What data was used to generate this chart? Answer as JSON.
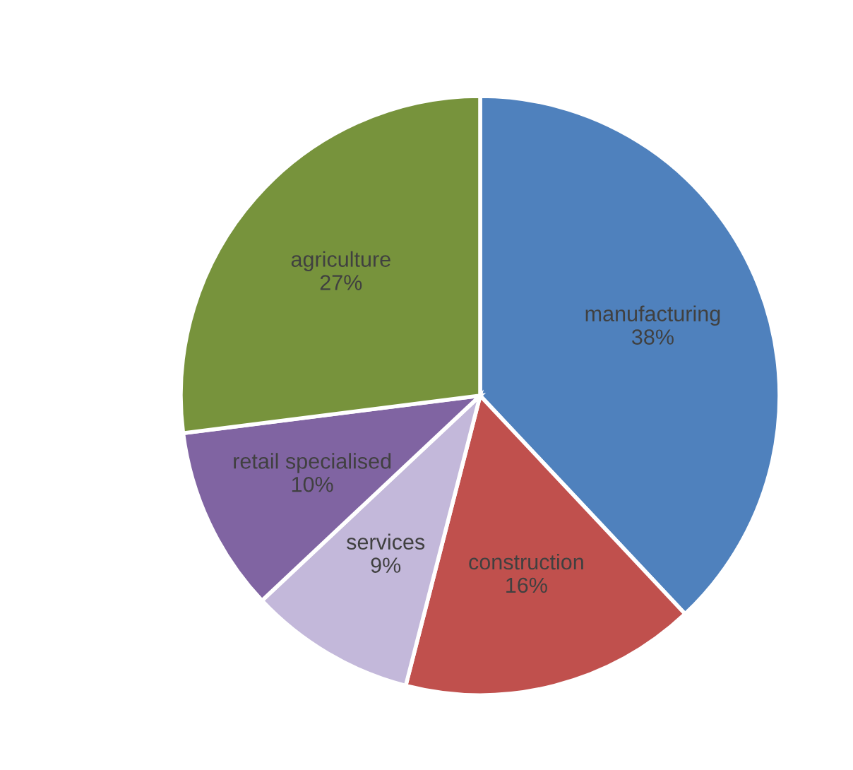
{
  "chart_data": {
    "type": "pie",
    "categories": [
      "manufacturing",
      "construction",
      "services",
      "retail specialised",
      "agriculture"
    ],
    "values": [
      38,
      16,
      9,
      10,
      27
    ],
    "colors": [
      "#4f81bd",
      "#c0504d",
      "#c3b8da",
      "#8064a2",
      "#77933c"
    ],
    "value_labels": [
      "38%",
      "16%",
      "9%",
      "10%",
      "27%"
    ]
  }
}
